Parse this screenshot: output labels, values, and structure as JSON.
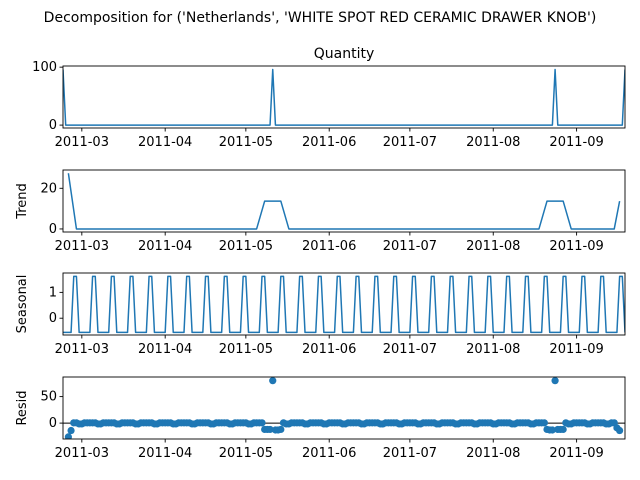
{
  "figure_title": "Decomposition for ('Netherlands', 'WHITE SPOT RED CERAMIC DRAWER KNOB')",
  "line_color": "#1f77b4",
  "chart_data": [
    {
      "type": "line",
      "name": "observed",
      "title": "Quantity",
      "ylabel": "",
      "xlim": [
        "2011-02-22",
        "2011-09-19"
      ],
      "ylim": [
        -5,
        102
      ],
      "yticks": [
        0,
        100
      ],
      "xticks": [
        "2011-03-01",
        "2011-04-01",
        "2011-05-01",
        "2011-06-01",
        "2011-07-01",
        "2011-08-01",
        "2011-09-01"
      ],
      "xtick_labels": [
        "2011-03",
        "2011-04",
        "2011-05",
        "2011-06",
        "2011-07",
        "2011-08",
        "2011-09"
      ],
      "spikes": [
        {
          "date": "2011-02-22",
          "value": 96
        },
        {
          "date": "2011-05-11",
          "value": 96
        },
        {
          "date": "2011-08-24",
          "value": 96
        },
        {
          "date": "2011-09-19",
          "value": 96
        }
      ]
    },
    {
      "type": "line",
      "name": "trend",
      "title": "",
      "ylabel": "Trend",
      "xlim": [
        "2011-02-22",
        "2011-09-19"
      ],
      "ylim": [
        -1.5,
        29
      ],
      "yticks": [
        0,
        20
      ],
      "xticks": [
        "2011-03-01",
        "2011-04-01",
        "2011-05-01",
        "2011-06-01",
        "2011-07-01",
        "2011-08-01",
        "2011-09-01"
      ],
      "xtick_labels": [
        "2011-03",
        "2011-04",
        "2011-05",
        "2011-06",
        "2011-07",
        "2011-08",
        "2011-09"
      ],
      "points": [
        {
          "date": "2011-02-24",
          "value": 27.4
        },
        {
          "date": "2011-02-27",
          "value": 0
        },
        {
          "date": "2011-05-05",
          "value": 0
        },
        {
          "date": "2011-05-08",
          "value": 13.7
        },
        {
          "date": "2011-05-14",
          "value": 13.7
        },
        {
          "date": "2011-05-17",
          "value": 0
        },
        {
          "date": "2011-08-18",
          "value": 0
        },
        {
          "date": "2011-08-21",
          "value": 13.7
        },
        {
          "date": "2011-08-27",
          "value": 13.7
        },
        {
          "date": "2011-08-30",
          "value": 0
        },
        {
          "date": "2011-09-15",
          "value": 0
        },
        {
          "date": "2011-09-17",
          "value": 13.7
        }
      ]
    },
    {
      "type": "line",
      "name": "seasonal",
      "title": "",
      "ylabel": "Seasonal",
      "xlim": [
        "2011-02-22",
        "2011-09-19"
      ],
      "ylim": [
        -0.65,
        1.75
      ],
      "yticks": [
        0,
        1
      ],
      "xticks": [
        "2011-03-01",
        "2011-04-01",
        "2011-05-01",
        "2011-06-01",
        "2011-07-01",
        "2011-08-01",
        "2011-09-01"
      ],
      "xtick_labels": [
        "2011-03",
        "2011-04",
        "2011-05",
        "2011-06",
        "2011-07",
        "2011-08",
        "2011-09"
      ],
      "period_days": 7,
      "pattern": [
        -0.55,
        -0.55,
        -0.55,
        -0.55,
        1.62,
        1.62,
        -0.55
      ],
      "start_date": "2011-02-22"
    },
    {
      "type": "scatter",
      "name": "resid",
      "title": "",
      "ylabel": "Resid",
      "xlim": [
        "2011-02-22",
        "2011-09-19"
      ],
      "ylim": [
        -30,
        87
      ],
      "yticks": [
        0,
        50
      ],
      "xticks": [
        "2011-03-01",
        "2011-04-01",
        "2011-05-01",
        "2011-06-01",
        "2011-07-01",
        "2011-08-01",
        "2011-09-01"
      ],
      "xtick_labels": [
        "2011-03",
        "2011-04",
        "2011-05",
        "2011-06",
        "2011-07",
        "2011-08",
        "2011-09"
      ],
      "hline": 0,
      "start_date": "2011-02-24",
      "end_date": "2011-09-17",
      "base_pattern": [
        0.5,
        0.5,
        0.5,
        0.5,
        -1.6,
        -1.6,
        0.5
      ],
      "overrides": [
        {
          "date": "2011-02-24",
          "value": -26
        },
        {
          "date": "2011-02-25",
          "value": -14
        },
        {
          "date": "2011-05-08",
          "value": -12
        },
        {
          "date": "2011-05-09",
          "value": -12
        },
        {
          "date": "2011-05-10",
          "value": -12
        },
        {
          "date": "2011-05-11",
          "value": 80
        },
        {
          "date": "2011-05-12",
          "value": -13
        },
        {
          "date": "2011-05-13",
          "value": -13
        },
        {
          "date": "2011-05-14",
          "value": -12
        },
        {
          "date": "2011-08-21",
          "value": -12
        },
        {
          "date": "2011-08-22",
          "value": -13
        },
        {
          "date": "2011-08-23",
          "value": -13
        },
        {
          "date": "2011-08-24",
          "value": 80
        },
        {
          "date": "2011-08-25",
          "value": -12
        },
        {
          "date": "2011-08-26",
          "value": -12
        },
        {
          "date": "2011-08-27",
          "value": -12
        },
        {
          "date": "2011-09-16",
          "value": -9
        },
        {
          "date": "2011-09-17",
          "value": -14
        }
      ]
    }
  ]
}
